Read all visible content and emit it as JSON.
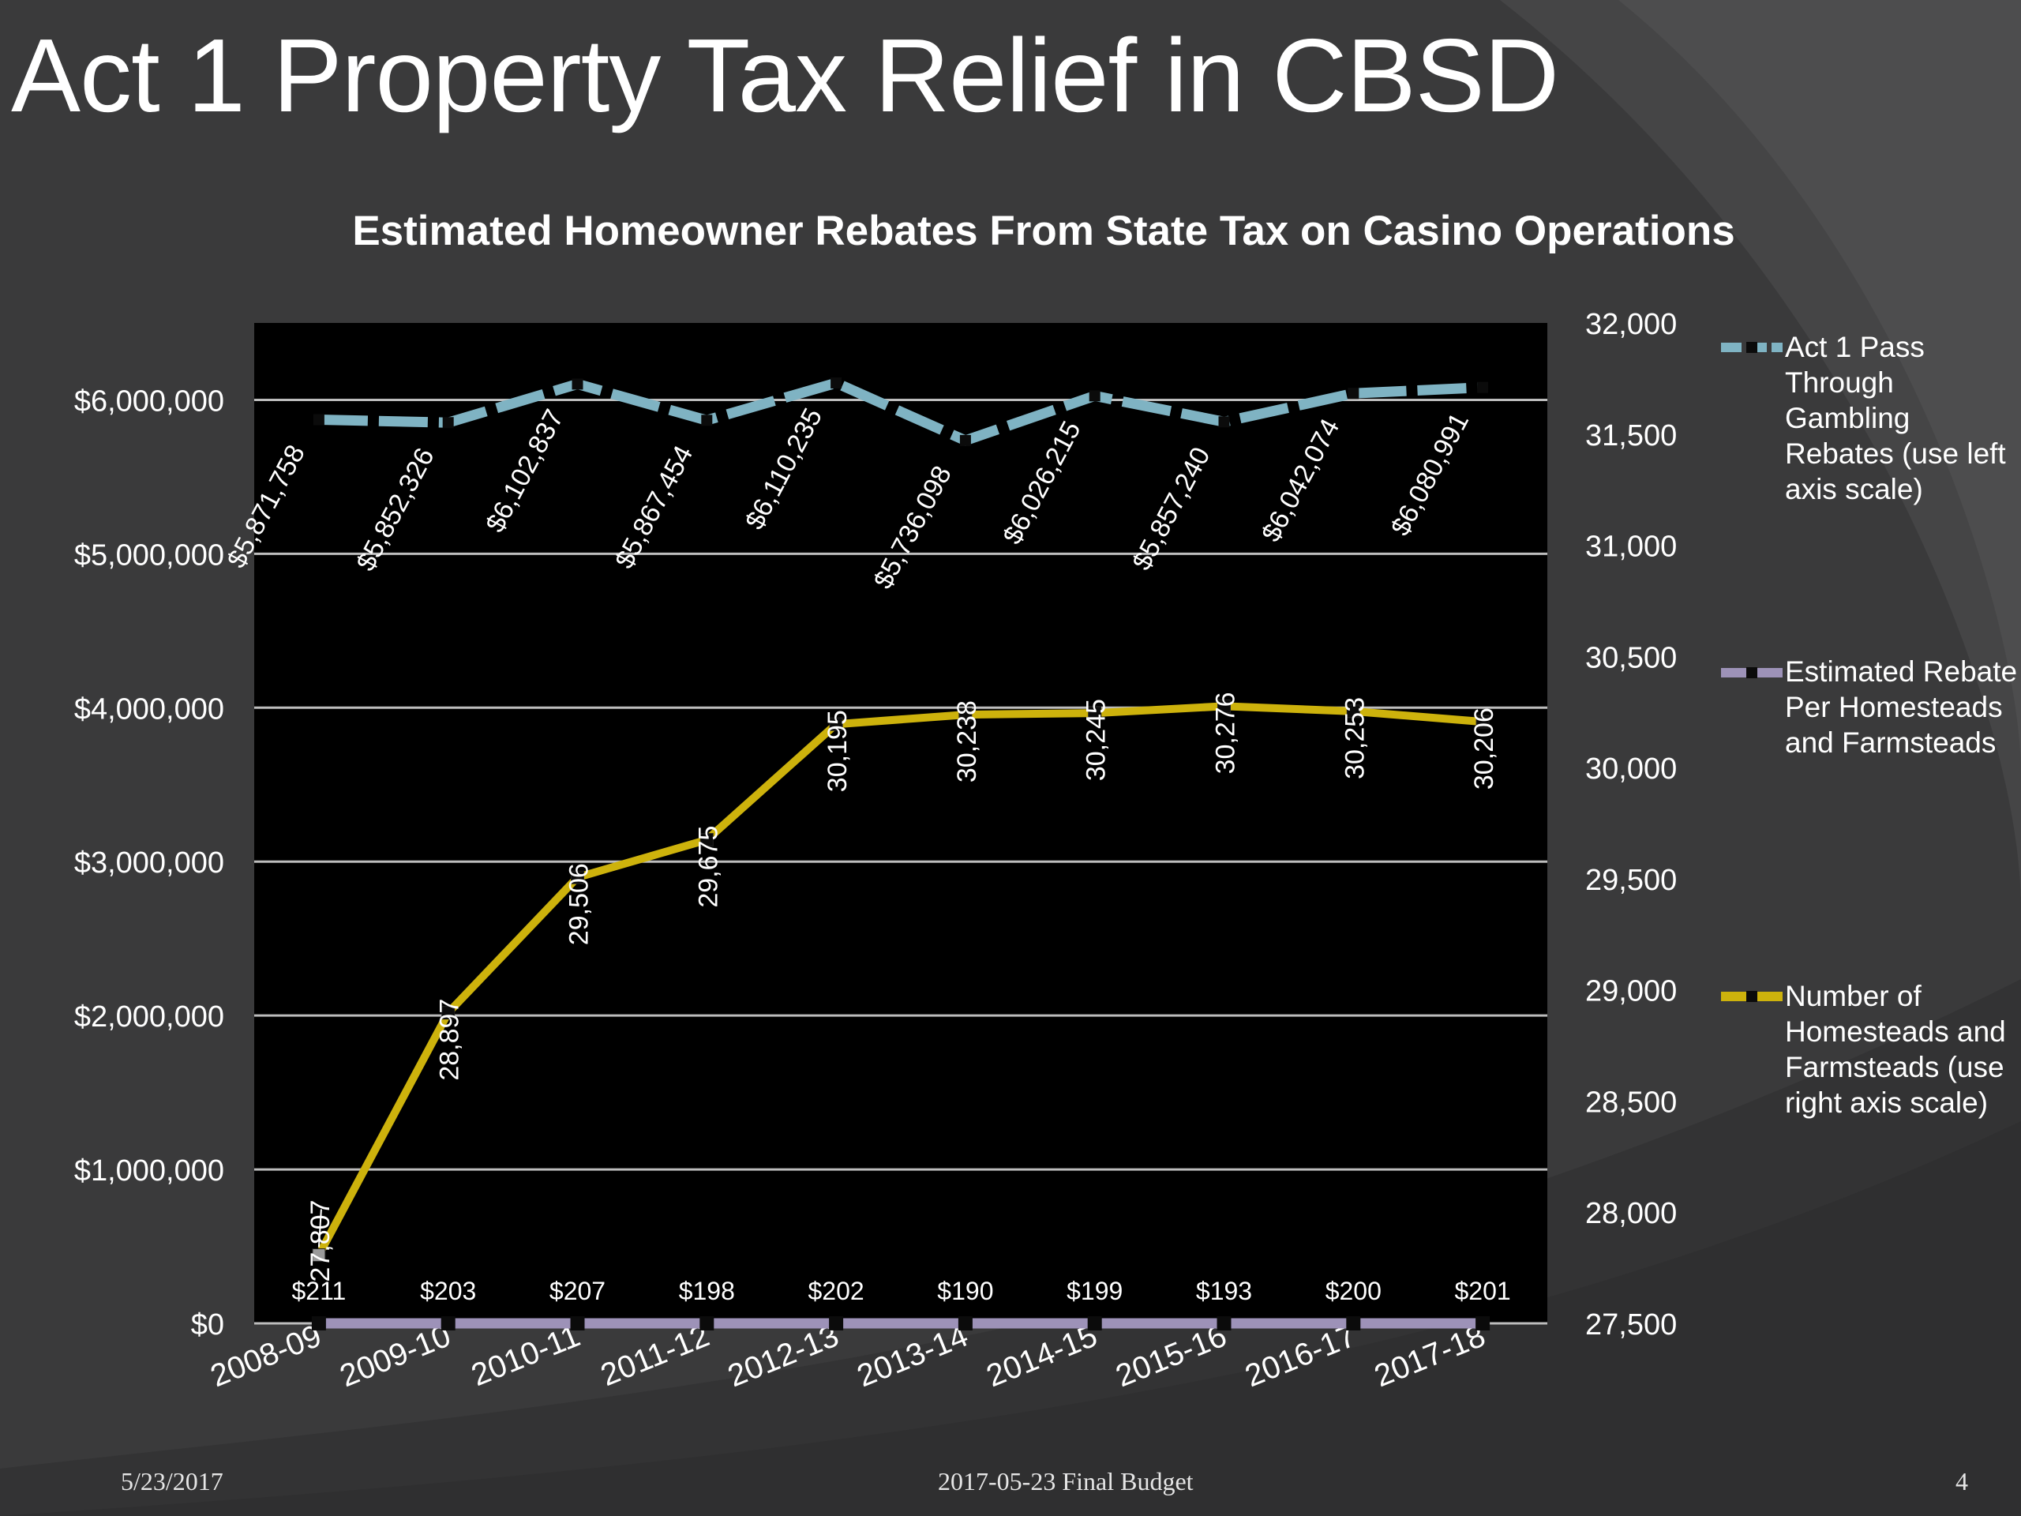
{
  "slide": {
    "title": "Act 1 Property Tax Relief in CBSD",
    "footer_date": "5/23/2017",
    "footer_center": "2017-05-23 Final Budget",
    "page_number": "4"
  },
  "chart_data": {
    "type": "line",
    "title": "Estimated Homeowner Rebates From State Tax on Casino Operations",
    "xlabel": "",
    "ylabel": "",
    "ylabel_right": "",
    "categories": [
      "2008-09",
      "2009-10",
      "2010-11",
      "2011-12",
      "2012-13",
      "2013-14",
      "2014-15",
      "2015-16",
      "2016-17",
      "2017-18"
    ],
    "y_left": {
      "lim": [
        0,
        6500000
      ],
      "ticks": [
        0,
        1000000,
        2000000,
        3000000,
        4000000,
        5000000,
        6000000
      ],
      "tick_labels": [
        "$0",
        "$1,000,000",
        "$2,000,000",
        "$3,000,000",
        "$4,000,000",
        "$5,000,000",
        "$6,000,000"
      ]
    },
    "y_right": {
      "lim": [
        27500,
        32000
      ],
      "ticks": [
        27500,
        28000,
        28500,
        29000,
        29500,
        30000,
        30500,
        31000,
        31500,
        32000
      ],
      "tick_labels": [
        "27,500",
        "28,000",
        "28,500",
        "29,000",
        "29,500",
        "30,000",
        "30,500",
        "31,000",
        "31,500",
        "32,000"
      ]
    },
    "grid": true,
    "legend_position": "right",
    "series": [
      {
        "name": "Act 1 Pass Through Gambling Rebates (use left axis scale)",
        "axis": "left",
        "color": "#7fb3c3",
        "dash": true,
        "values": [
          5871758,
          5852326,
          6102837,
          5867454,
          6110235,
          5736098,
          6026215,
          5857240,
          6042074,
          6080991
        ],
        "labels": [
          "$5,871,758",
          "$5,852,326",
          "$6,102,837",
          "$5,867,454",
          "$6,110,235",
          "$5,736,098",
          "$6,026,215",
          "$5,857,240",
          "$6,042,074",
          "$6,080,991"
        ]
      },
      {
        "name": "Estimated Rebate Per Homesteads and Farmsteads",
        "axis": "left",
        "color": "#9d92b8",
        "dash": false,
        "values": [
          211,
          203,
          207,
          198,
          202,
          190,
          199,
          193,
          200,
          201
        ],
        "labels": [
          "$211",
          "$203",
          "$207",
          "$198",
          "$202",
          "$190",
          "$199",
          "$193",
          "$200",
          "$201"
        ]
      },
      {
        "name": "Number of Homesteads and Farmsteads (use right axis scale)",
        "axis": "right",
        "color": "#cdb20c",
        "dash": false,
        "values": [
          27807,
          28897,
          29506,
          29675,
          30195,
          30238,
          30245,
          30276,
          30253,
          30206
        ],
        "labels": [
          "27,807",
          "28,897",
          "29,506",
          "29,675",
          "30,195",
          "30,238",
          "30,245",
          "30,276",
          "30,253",
          "30,206"
        ]
      }
    ]
  }
}
